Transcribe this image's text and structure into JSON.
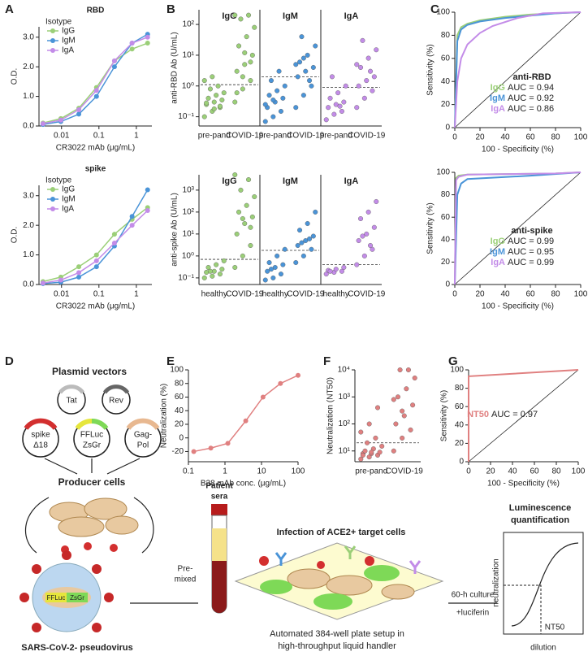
{
  "panel_labels": [
    "A",
    "B",
    "C",
    "D",
    "E",
    "F",
    "G"
  ],
  "chart_data": [
    {
      "type": "line",
      "title": "RBD",
      "legend_title": "Isotype",
      "xlog": true,
      "markers": true,
      "x": [
        0.0032,
        0.0096,
        0.029,
        0.086,
        0.26,
        0.77,
        2.0
      ],
      "xlim": [
        0.0025,
        2.6
      ],
      "xticks": [
        0.01,
        0.1,
        1
      ],
      "ylim": [
        0,
        3.35
      ],
      "yticks": [
        {
          "value": 0,
          "label": "0.0"
        },
        {
          "value": 1,
          "label": "1.0"
        },
        {
          "value": 2,
          "label": "2.0"
        },
        {
          "value": 3,
          "label": "3.0"
        }
      ],
      "xlabel": "CR3022 mAb (μg/mL)",
      "ylabel": "O.D.",
      "series": [
        {
          "name": "IgG",
          "color": "#9bcf78",
          "values": [
            0.1,
            0.25,
            0.6,
            1.3,
            2.2,
            2.6,
            2.8
          ]
        },
        {
          "name": "IgM",
          "color": "#4a94d8",
          "values": [
            0.05,
            0.15,
            0.4,
            1.0,
            2.0,
            2.8,
            3.1
          ]
        },
        {
          "name": "IgA",
          "color": "#c38ce8",
          "values": [
            0.08,
            0.2,
            0.55,
            1.2,
            2.2,
            2.8,
            3.0
          ]
        }
      ]
    },
    {
      "type": "line",
      "title": "spike",
      "legend_title": "Isotype",
      "xlog": true,
      "markers": true,
      "x": [
        0.0032,
        0.0096,
        0.029,
        0.086,
        0.26,
        0.77,
        2.0
      ],
      "xlim": [
        0.0025,
        2.6
      ],
      "xticks": [
        0.01,
        0.1,
        1
      ],
      "ylim": [
        0,
        3.35
      ],
      "yticks": [
        {
          "value": 0,
          "label": "0.0"
        },
        {
          "value": 1,
          "label": "1.0"
        },
        {
          "value": 2,
          "label": "2.0"
        },
        {
          "value": 3,
          "label": "3.0"
        }
      ],
      "xlabel": "CR3022 mAb (μg/mL)",
      "ylabel": "O.D.",
      "series": [
        {
          "name": "IgG",
          "color": "#9bcf78",
          "values": [
            0.1,
            0.25,
            0.6,
            1.0,
            1.7,
            2.2,
            2.6
          ]
        },
        {
          "name": "IgM",
          "color": "#4a94d8",
          "values": [
            0.03,
            0.08,
            0.25,
            0.6,
            1.3,
            2.3,
            3.2
          ]
        },
        {
          "name": "IgA",
          "color": "#c38ce8",
          "values": [
            0.05,
            0.15,
            0.4,
            0.8,
            1.4,
            2.0,
            2.5
          ]
        }
      ]
    },
    {
      "type": "strip",
      "ylog": true,
      "ylim": [
        0.05,
        300
      ],
      "yticks": [
        {
          "value": 0.1,
          "label": "10⁻¹"
        },
        {
          "value": 1,
          "label": "10⁰"
        },
        {
          "value": 10,
          "label": "10¹"
        },
        {
          "value": 100,
          "label": "10²"
        }
      ],
      "ylabel": "anti-RBD Ab (U/mL)",
      "categories": [
        "pre-pand",
        "COVID-19"
      ],
      "facets": [
        {
          "name": "IgG",
          "color": "#9bcf78",
          "cutoff": 1.1,
          "groups": [
            [
              0.1,
              0.15,
              0.2,
              0.25,
              0.3,
              0.35,
              0.4,
              0.5,
              0.6,
              0.8,
              1.0,
              1.5,
              2,
              0.22,
              0.28,
              0.18
            ],
            [
              0.3,
              0.8,
              1.5,
              3,
              5,
              10,
              20,
              40,
              80,
              150,
              200,
              200,
              2,
              6,
              0.6,
              12
            ]
          ]
        },
        {
          "name": "IgM",
          "color": "#4a94d8",
          "cutoff": 2,
          "groups": [
            [
              0.07,
              0.1,
              0.15,
              0.2,
              0.3,
              0.4,
              0.5,
              0.7,
              1,
              1.5,
              3,
              0.25,
              0.35
            ],
            [
              0.2,
              0.5,
              1,
              2,
              3,
              4,
              6,
              10,
              20,
              40,
              1.5,
              5,
              8
            ]
          ]
        },
        {
          "name": "IgA",
          "color": "#c38ce8",
          "cutoff": 0.9,
          "groups": [
            [
              0.08,
              0.12,
              0.15,
              0.2,
              0.25,
              0.3,
              0.4,
              0.6,
              1,
              2,
              0.22
            ],
            [
              0.2,
              0.4,
              0.7,
              1,
              1.5,
              2,
              4,
              8,
              15,
              30,
              3,
              5
            ]
          ]
        }
      ]
    },
    {
      "type": "strip",
      "ylog": true,
      "ylim": [
        0.05,
        5000
      ],
      "yticks": [
        {
          "value": 0.1,
          "label": "10⁻¹"
        },
        {
          "value": 1,
          "label": "10⁰"
        },
        {
          "value": 10,
          "label": "10¹"
        },
        {
          "value": 100,
          "label": "10²"
        },
        {
          "value": 1000,
          "label": "10³"
        }
      ],
      "ylabel": "anti-spike Ab (U/mL)",
      "categories": [
        "healthy",
        "COVID-19"
      ],
      "facets": [
        {
          "name": "IgG",
          "color": "#9bcf78",
          "cutoff": 0.7,
          "groups": [
            [
              0.1,
              0.12,
              0.15,
              0.18,
              0.2,
              0.25,
              0.3,
              0.4,
              0.6,
              0.2
            ],
            [
              0.3,
              1,
              3,
              10,
              30,
              60,
              100,
              200,
              500,
              1000,
              3000,
              5000,
              50,
              20
            ]
          ]
        },
        {
          "name": "IgM",
          "color": "#4a94d8",
          "cutoff": 1.8,
          "groups": [
            [
              0.08,
              0.1,
              0.15,
              0.2,
              0.3,
              0.4,
              0.5,
              1,
              2,
              0.25
            ],
            [
              0.5,
              1,
              2,
              3,
              5,
              8,
              15,
              30,
              100,
              4,
              6
            ]
          ]
        },
        {
          "name": "IgA",
          "color": "#c38ce8",
          "cutoff": 0.4,
          "groups": [
            [
              0.15,
              0.18,
              0.2,
              0.22,
              0.25,
              0.3,
              0.2
            ],
            [
              0.4,
              1,
              2,
              5,
              10,
              20,
              50,
              100,
              300,
              8,
              3
            ]
          ]
        }
      ]
    },
    {
      "type": "line",
      "annotation": "anti-RBD",
      "diagonal": true,
      "xlim": [
        0,
        100
      ],
      "xticks": [
        0,
        20,
        40,
        60,
        80,
        100
      ],
      "ylim": [
        0,
        100
      ],
      "yticks": [
        0,
        20,
        40,
        60,
        80,
        100
      ],
      "xlabel": "100 - Specificity (%)",
      "ylabel": "Sensitivity (%)",
      "series": [
        {
          "name": "IgG",
          "auc_text": "AUC = 0.94",
          "color": "#9bcf78",
          "x": [
            0,
            2,
            5,
            10,
            20,
            40,
            60,
            80,
            100
          ],
          "values": [
            0,
            80,
            87,
            90,
            93,
            96,
            98,
            99,
            100
          ]
        },
        {
          "name": "IgM",
          "auc_text": "AUC = 0.92",
          "color": "#4a94d8",
          "x": [
            0,
            2,
            5,
            10,
            20,
            40,
            60,
            80,
            100
          ],
          "values": [
            0,
            75,
            85,
            89,
            92,
            95,
            97,
            99,
            100
          ]
        },
        {
          "name": "IgA",
          "auc_text": "AUC = 0.86",
          "color": "#c38ce8",
          "x": [
            0,
            2,
            5,
            10,
            20,
            30,
            50,
            70,
            100
          ],
          "values": [
            0,
            40,
            60,
            72,
            82,
            88,
            95,
            99,
            100
          ]
        }
      ]
    },
    {
      "type": "line",
      "annotation": "anti-spike",
      "diagonal": true,
      "xlim": [
        0,
        100
      ],
      "xticks": [
        0,
        20,
        40,
        60,
        80,
        100
      ],
      "ylim": [
        0,
        100
      ],
      "yticks": [
        0,
        20,
        40,
        60,
        80,
        100
      ],
      "xlabel": "100 - Specificity (%)",
      "ylabel": "Sensitivity (%)",
      "series": [
        {
          "name": "IgG",
          "auc_text": "AUC = 0.99",
          "color": "#9bcf78",
          "x": [
            0,
            1,
            3,
            10,
            80,
            100
          ],
          "values": [
            0,
            95,
            97,
            98,
            99,
            100
          ]
        },
        {
          "name": "IgM",
          "auc_text": "AUC = 0.95",
          "color": "#4a94d8",
          "x": [
            0,
            2,
            5,
            10,
            60,
            100
          ],
          "values": [
            0,
            80,
            90,
            94,
            97,
            100
          ]
        },
        {
          "name": "IgA",
          "auc_text": "AUC = 0.99",
          "color": "#c38ce8",
          "x": [
            0,
            1,
            3,
            10,
            80,
            100
          ],
          "values": [
            0,
            93,
            96,
            98,
            99,
            100
          ]
        }
      ]
    },
    {
      "type": "line",
      "xlog": true,
      "markers": true,
      "xlim": [
        0.1,
        100
      ],
      "xticks": [
        0.1,
        1,
        10,
        100
      ],
      "ylim": [
        -35,
        100
      ],
      "yticks": [
        -20,
        0,
        20,
        40,
        60,
        80,
        100
      ],
      "xlabel": "B38 mAb conc. (μg/mL)",
      "ylabel": "Neutralization (%)",
      "series": [
        {
          "color": "#e08080",
          "x": [
            0.14,
            0.41,
            1.2,
            3.7,
            11,
            33,
            100
          ],
          "values": [
            -20,
            -15,
            -8,
            25,
            60,
            80,
            92
          ]
        }
      ]
    },
    {
      "type": "strip",
      "ylog": true,
      "ylim": [
        4,
        10000
      ],
      "yticks": [
        {
          "value": 10,
          "label": "10¹"
        },
        {
          "value": 100,
          "label": "10²"
        },
        {
          "value": 1000,
          "label": "10³"
        },
        {
          "value": 10000,
          "label": "10⁴"
        }
      ],
      "ylabel": "Neutralization (NT50)",
      "categories": [
        "pre-pand",
        "COVID-19"
      ],
      "facets": [
        {
          "color": "#e08080",
          "cutoff": 20,
          "groups": [
            [
              5,
              6,
              7,
              8,
              8,
              9,
              10,
              12,
              15,
              20,
              30,
              50,
              100,
              400,
              7,
              9
            ],
            [
              10,
              30,
              60,
              100,
              200,
              500,
              1000,
              2000,
              5000,
              10000,
              10000,
              800,
              300
            ]
          ]
        }
      ]
    },
    {
      "type": "line",
      "diagonal": true,
      "xlim": [
        0,
        100
      ],
      "xticks": [
        0,
        20,
        40,
        60,
        80,
        100
      ],
      "ylim": [
        0,
        100
      ],
      "yticks": [
        0,
        20,
        40,
        60,
        80,
        100
      ],
      "xlabel": "100 - Specificity (%)",
      "ylabel": "Sensitivity (%)",
      "series": [
        {
          "name": "NT50",
          "auc_text": "AUC = 0.97",
          "color": "#e08080",
          "x": [
            0,
            0,
            100
          ],
          "values": [
            0,
            93,
            100
          ]
        }
      ]
    }
  ],
  "diagram": {
    "plasmid_title": "Plasmid vectors",
    "plasmids": [
      {
        "lines": [
          "Tat"
        ]
      },
      {
        "lines": [
          "Rev"
        ]
      },
      {
        "lines": [
          "spike",
          "Δ18"
        ]
      },
      {
        "lines": [
          "FFLuc",
          "ZsGr"
        ]
      },
      {
        "lines": [
          "Gag-",
          "Pol"
        ]
      }
    ],
    "producer": "Producer cells",
    "virus_inner": [
      "FFLuc",
      "ZsGr"
    ],
    "virus": "SARS-CoV-2- pseudovirus",
    "sera": [
      "Patient",
      "sera"
    ],
    "premixed": [
      "Pre-",
      "mixed"
    ],
    "infection": "Infection of ACE2+ target cells",
    "plate": [
      "Automated 384-well plate setup in",
      "high-throughput liquid handler"
    ],
    "culture": [
      "60-h culture",
      "+luciferin"
    ],
    "lum": [
      "Luminescence",
      "quantification"
    ],
    "curve": {
      "ylabel": "neutralization",
      "xlabel": "dilution",
      "marker": "NT50"
    }
  }
}
